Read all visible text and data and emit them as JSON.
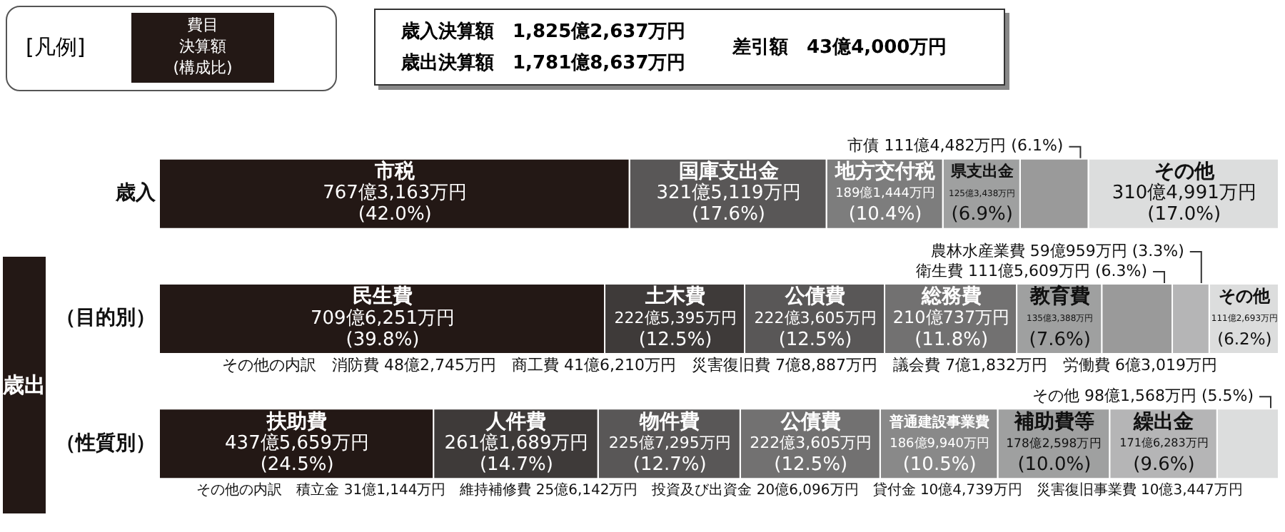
{
  "chart_data": {
    "type": "bar",
    "orientation": "horizontal",
    "stacked": true,
    "grid": false,
    "legend": false,
    "tick_labels": "y",
    "categories": [
      "歳入",
      "（目的別）",
      "（性質別）"
    ],
    "xlim": [
      0,
      100
    ],
    "series": [
      {
        "name": "市税",
        "color": "#231815",
        "values": [
          42.0,
          null,
          null
        ],
        "value_labels": [
          "767億3,163万円 (42.0%)",
          null,
          null
        ]
      },
      {
        "name": "国庫支出金",
        "color": "#595757",
        "values": [
          17.6,
          null,
          null
        ],
        "value_labels": [
          "321億5,119万円 (17.6%)",
          null,
          null
        ]
      },
      {
        "name": "地方交付税",
        "color": "#7d7d7d",
        "values": [
          10.4,
          null,
          null
        ],
        "value_labels": [
          "189億1,444万円 (10.4%)",
          null,
          null
        ]
      },
      {
        "name": "県支出金",
        "color": "#9fa0a0",
        "values": [
          6.9,
          null,
          null
        ],
        "value_labels": [
          "125億3,438万円 (6.9%)",
          null,
          null
        ]
      },
      {
        "color": "#9a9a9a",
        "values": [
          6.1,
          null,
          null
        ]
      },
      {
        "name": "その他",
        "color": "#dcdddd",
        "values": [
          17.0,
          null,
          null
        ],
        "value_labels": [
          "310億4,991万円 (17.0%)",
          null,
          null
        ]
      },
      {
        "name": "民生費",
        "color": "#231815",
        "values": [
          null,
          39.8,
          null
        ],
        "value_labels": [
          null,
          "709億6,251万円 (39.8%)",
          null
        ]
      },
      {
        "name": "土木費",
        "color": "#3e3a39",
        "values": [
          null,
          12.5,
          null
        ],
        "value_labels": [
          null,
          "222億5,395万円 (12.5%)",
          null
        ]
      },
      {
        "name": "公債費",
        "color": "#595757",
        "values": [
          null,
          12.5,
          null
        ],
        "value_labels": [
          null,
          "222億3,605万円 (12.5%)",
          null
        ]
      },
      {
        "name": "総務費",
        "color": "#727171",
        "values": [
          null,
          11.8,
          null
        ],
        "value_labels": [
          null,
          "210億737万円 (11.8%)",
          null
        ]
      },
      {
        "name": "教育費",
        "color": "#9fa0a0",
        "values": [
          null,
          7.6,
          null
        ],
        "value_labels": [
          null,
          "135億3,388万円 (7.6%)",
          null
        ]
      },
      {
        "color": "#9a9a9a",
        "values": [
          null,
          6.3,
          null
        ]
      },
      {
        "color": "#b5b5b6",
        "values": [
          null,
          3.3,
          null
        ]
      },
      {
        "name": "その他",
        "color": "#dcdddd",
        "values": [
          null,
          6.2,
          null
        ],
        "value_labels": [
          null,
          "111億2,693万円 (6.2%)",
          null
        ]
      },
      {
        "name": "扶助費",
        "color": "#231815",
        "values": [
          null,
          null,
          24.5
        ],
        "value_labels": [
          null,
          null,
          "437億5,659万円 (24.5%)"
        ]
      },
      {
        "name": "人件費",
        "color": "#3e3a39",
        "values": [
          null,
          null,
          14.7
        ],
        "value_labels": [
          null,
          null,
          "261億1,689万円 (14.7%)"
        ]
      },
      {
        "name": "物件費",
        "color": "#595757",
        "values": [
          null,
          null,
          12.7
        ],
        "value_labels": [
          null,
          null,
          "225億7,295万円 (12.7%)"
        ]
      },
      {
        "name": "公債費",
        "color": "#727171",
        "values": [
          null,
          null,
          12.5
        ],
        "value_labels": [
          null,
          null,
          "222億3,605万円 (12.5%)"
        ]
      },
      {
        "name": "普通建設事業費",
        "color": "#898989",
        "values": [
          null,
          null,
          10.5
        ],
        "value_labels": [
          null,
          null,
          "186億9,940万円 (10.5%)"
        ]
      },
      {
        "name": "補助費等",
        "color": "#9fa0a0",
        "values": [
          null,
          null,
          10.0
        ],
        "value_labels": [
          null,
          null,
          "178億2,598万円 (10.0%)"
        ]
      },
      {
        "name": "繰出金",
        "color": "#b5b5b6",
        "values": [
          null,
          null,
          9.6
        ],
        "value_labels": [
          null,
          null,
          "171億6,283万円 (9.6%)"
        ]
      },
      {
        "color": "#dcdddd",
        "values": [
          null,
          null,
          5.5
        ]
      }
    ],
    "annotations": [
      "[凡例]",
      "費目",
      "決算額",
      "(構成比)",
      "歳入決算額　1,825億2,637万円",
      "歳出決算額　1,781億8,637万円",
      "差引額　43億4,000万円",
      "歳出",
      "市債 111億4,482万円 (6.1%)",
      "衛生費 111億5,609万円 (6.3%)",
      "農林水産業費 59億959万円 (3.3%)",
      "その他 98億1,568万円 (5.5%)",
      "その他の内訳　消防費 48億2,745万円　商工費 41億6,210万円　災害復旧費 7億8,887万円　議会費 7億1,832万円　労働費 6億3,019万円",
      "その他の内訳　積立金 31億1,144万円　維持補修費 25億6,142万円　投資及び出資金 20億6,096万円　貸付金 10億4,739万円　災害復旧事業費 10億3,447万円"
    ]
  }
}
